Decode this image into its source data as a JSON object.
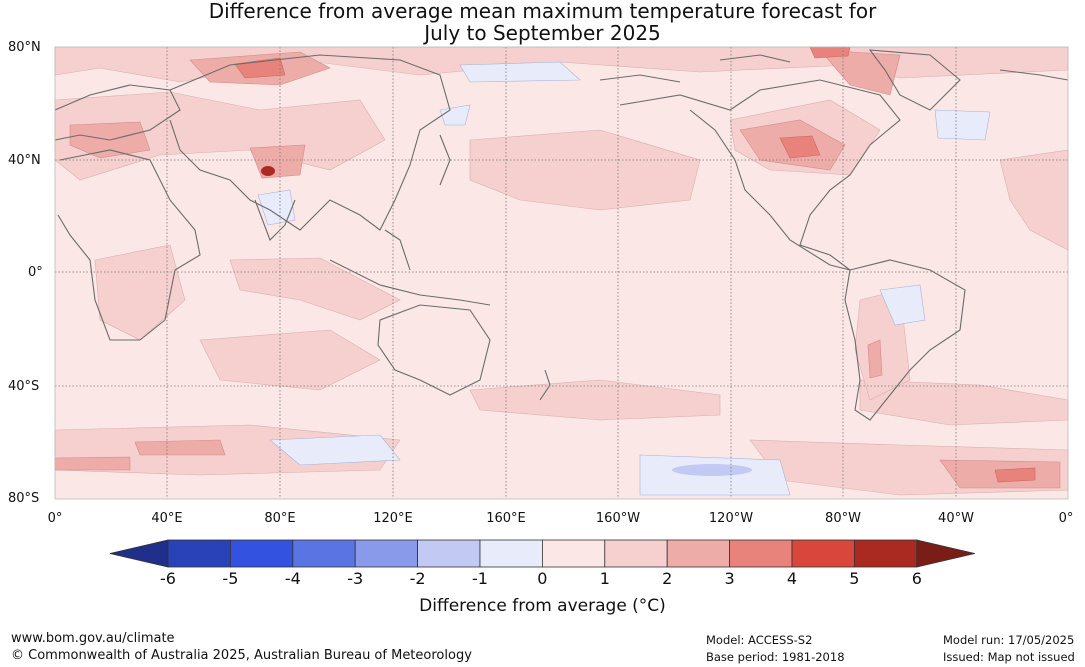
{
  "title_line1": "Difference from average mean maximum temperature forecast for",
  "title_line2": "July to September 2025",
  "lat_labels": [
    "80°N",
    "40°N",
    "0°",
    "40°S",
    "80°S"
  ],
  "lon_labels": [
    "0°",
    "40°E",
    "80°E",
    "120°E",
    "160°E",
    "160°W",
    "120°W",
    "80°W",
    "40°W",
    "0°"
  ],
  "colorbar": {
    "ticks": [
      "-6",
      "-5",
      "-4",
      "-3",
      "-2",
      "-1",
      "0",
      "1",
      "2",
      "3",
      "4",
      "5",
      "6"
    ],
    "colors": [
      "#1f2f8a",
      "#2a42b8",
      "#3352e0",
      "#5a74e4",
      "#8a9aea",
      "#c2c9f3",
      "#e8ecfa",
      "#fbe8e6",
      "#f5d0cf",
      "#eeaca8",
      "#e8837b",
      "#d9473c",
      "#aa2a22",
      "#7a1d17"
    ],
    "label": "Difference from average (°C)"
  },
  "footer": {
    "url": "www.bom.gov.au/climate",
    "copyright": "© Commonwealth of Australia 2025, Australian Bureau of Meteorology",
    "model": "Model: ACCESS-S2",
    "base_period": "Base period: 1981-2018",
    "model_run": "Model run: 17/05/2025",
    "issued": "Issued: Map not issued"
  },
  "map_colors": {
    "ocean_base": "#fbe8e6",
    "anomaly_1_2": "#f5d0cf",
    "anomaly_2_3": "#eeaca8",
    "anomaly_3_4": "#e8837b",
    "anomaly_4_5": "#d9473c",
    "anomaly_5_6": "#aa2a22",
    "anomaly_neg": "#e8ecfa",
    "anomaly_neg2": "#c2c9f3",
    "coastline": "#666666"
  }
}
